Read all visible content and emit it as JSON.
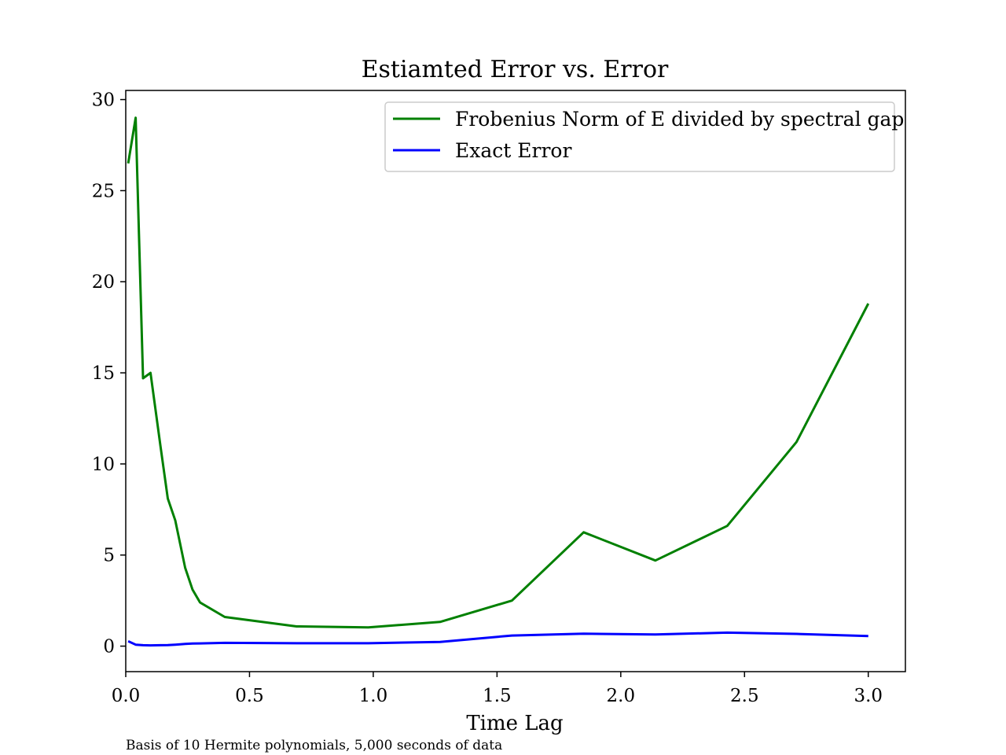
{
  "caption": "Basis of 10 Hermite polynomials, 5,000 seconds of data",
  "chart_data": {
    "type": "line",
    "title": "Estiamted Error vs. Error",
    "xlabel": "Time Lag",
    "ylabel": "",
    "xlim": [
      0.0,
      3.15
    ],
    "ylim": [
      -1.4,
      30.5
    ],
    "xticks": [
      0.0,
      0.5,
      1.0,
      1.5,
      2.0,
      2.5,
      3.0
    ],
    "xtick_labels": [
      "0.0",
      "0.5",
      "1.0",
      "1.5",
      "2.0",
      "2.5",
      "3.0"
    ],
    "yticks": [
      0,
      5,
      10,
      15,
      20,
      25,
      30
    ],
    "ytick_labels": [
      "0",
      "5",
      "10",
      "15",
      "20",
      "25",
      "30"
    ],
    "grid": false,
    "legend_position": "top-right",
    "series": [
      {
        "name": "Frobenius Norm of E divided by spectral gap",
        "color": "#008000",
        "x": [
          0.01,
          0.04,
          0.07,
          0.1,
          0.14,
          0.17,
          0.2,
          0.24,
          0.27,
          0.3,
          0.4,
          0.69,
          0.98,
          1.27,
          1.56,
          1.85,
          2.14,
          2.43,
          2.71,
          3.0
        ],
        "y": [
          26.5,
          29.0,
          14.7,
          15.0,
          11.0,
          8.1,
          6.9,
          4.3,
          3.1,
          2.4,
          1.6,
          1.08,
          1.03,
          1.33,
          2.5,
          6.25,
          4.7,
          6.6,
          11.2,
          18.8
        ]
      },
      {
        "name": "Exact Error",
        "color": "#0000ff",
        "x": [
          0.01,
          0.04,
          0.07,
          0.1,
          0.14,
          0.17,
          0.2,
          0.24,
          0.27,
          0.3,
          0.4,
          0.69,
          0.98,
          1.27,
          1.56,
          1.85,
          2.14,
          2.43,
          2.71,
          3.0
        ],
        "y": [
          0.27,
          0.08,
          0.05,
          0.04,
          0.05,
          0.06,
          0.08,
          0.12,
          0.14,
          0.15,
          0.18,
          0.16,
          0.16,
          0.23,
          0.58,
          0.68,
          0.64,
          0.74,
          0.67,
          0.55
        ]
      }
    ]
  }
}
